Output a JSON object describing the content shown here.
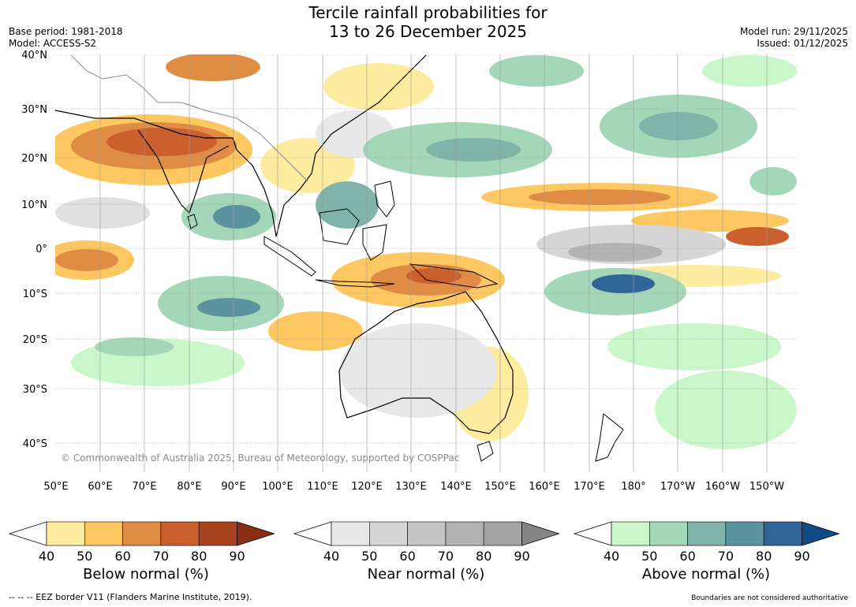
{
  "title": {
    "line1": "Tercile rainfall probabilities for",
    "line2": "13 to 26 December 2025"
  },
  "meta": {
    "base_period": "Base period: 1981-2018",
    "model": "Model: ACCESS-S2",
    "model_run": "Model run: 29/11/2025",
    "issued": "Issued: 01/12/2025"
  },
  "map": {
    "lat_labels": [
      "40°N",
      "30°N",
      "20°N",
      "10°N",
      "0°",
      "10°S",
      "20°S",
      "30°S",
      "40°S"
    ],
    "lon_labels": [
      "50°E",
      "60°E",
      "70°E",
      "80°E",
      "90°E",
      "100°E",
      "110°E",
      "120°E",
      "130°E",
      "140°E",
      "150°E",
      "160°E",
      "170°E",
      "180°",
      "170°W",
      "160°W",
      "150°W"
    ],
    "copyright": "© Commonwealth of Australia 2025, Bureau of Meteorology, supported by COSPPac"
  },
  "colorbars": [
    {
      "title": "Below normal (%)",
      "ticks": [
        "40",
        "50",
        "60",
        "70",
        "80",
        "90"
      ],
      "colors": [
        "#fdeca0",
        "#fdc862",
        "#e08c45",
        "#c9602e",
        "#a84320",
        "#8a2f14"
      ]
    },
    {
      "title": "Near normal (%)",
      "ticks": [
        "40",
        "50",
        "60",
        "70",
        "80",
        "90"
      ],
      "colors": [
        "#e8e8e8",
        "#d6d6d6",
        "#c5c5c5",
        "#b3b3b3",
        "#a3a3a3",
        "#858585"
      ]
    },
    {
      "title": "Above normal (%)",
      "ticks": [
        "40",
        "50",
        "60",
        "70",
        "80",
        "90"
      ],
      "colors": [
        "#c9f7c9",
        "#a4d7b8",
        "#80b4a8",
        "#5b93a0",
        "#2f6596",
        "#114a84"
      ]
    }
  ],
  "footer": {
    "eez": "--  --  -- EEZ border V11 (Flanders Marine Institute, 2019).",
    "note": "Boundaries are not considered authoritative"
  }
}
